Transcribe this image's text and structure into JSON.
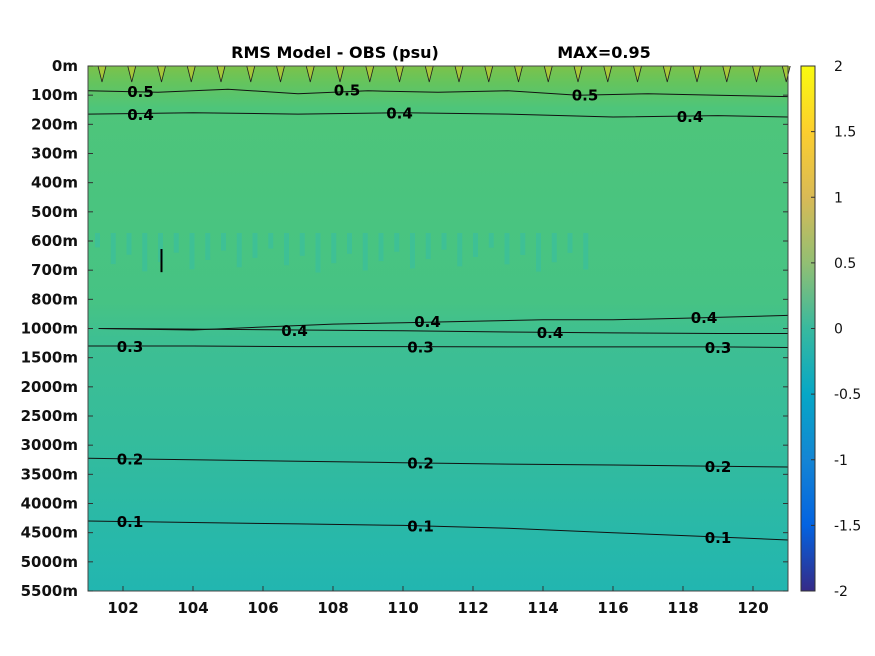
{
  "chart_data": {
    "type": "heatmap",
    "title": "RMS Model - OBS (psu)",
    "max_label": "MAX=0.95",
    "x_ticks": [
      "102",
      "104",
      "106",
      "108",
      "110",
      "112",
      "114",
      "116",
      "118",
      "120"
    ],
    "x_tick_values": [
      102,
      104,
      106,
      108,
      110,
      112,
      114,
      116,
      118,
      120
    ],
    "xlim": [
      101,
      121
    ],
    "y_ticks": [
      "0m",
      "100m",
      "200m",
      "300m",
      "400m",
      "500m",
      "600m",
      "700m",
      "800m",
      "1000m",
      "1500m",
      "2000m",
      "2500m",
      "3000m",
      "3500m",
      "4000m",
      "4500m",
      "5000m",
      "5500m"
    ],
    "colorbar": {
      "ticks": [
        "2",
        "1.5",
        "1",
        "0.5",
        "0",
        "-0.5",
        "-1",
        "-1.5",
        "-2"
      ],
      "tick_values": [
        2,
        1.5,
        1,
        0.5,
        0,
        -0.5,
        -1,
        -1.5,
        -2
      ],
      "range": [
        -2,
        2
      ],
      "colormap": "parula"
    },
    "bands": [
      {
        "depth_index": 0,
        "value": 0.65
      },
      {
        "depth_index": 1,
        "value": 0.48
      },
      {
        "depth_index": 2,
        "value": 0.42
      },
      {
        "depth_index": 5,
        "value": 0.4
      },
      {
        "depth_index": 9,
        "value": 0.38
      },
      {
        "depth_index": 10,
        "value": 0.3
      },
      {
        "depth_index": 13,
        "value": 0.2
      },
      {
        "depth_index": 15,
        "value": 0.1
      },
      {
        "depth_index": 18,
        "value": 0.05
      }
    ],
    "contours": [
      {
        "level": "0.5",
        "points": [
          [
            101,
            0.85
          ],
          [
            103,
            0.9
          ],
          [
            105,
            0.8
          ],
          [
            107,
            0.95
          ],
          [
            109,
            0.85
          ],
          [
            111,
            0.9
          ],
          [
            113,
            0.85
          ],
          [
            115,
            1.0
          ],
          [
            117,
            0.95
          ],
          [
            119,
            1.0
          ],
          [
            121,
            1.05
          ]
        ],
        "labels": [
          [
            102.5,
            0.85
          ],
          [
            108.4,
            0.8
          ],
          [
            115.2,
            0.97
          ]
        ]
      },
      {
        "level": "0.4",
        "points": [
          [
            101,
            1.65
          ],
          [
            104,
            1.6
          ],
          [
            107,
            1.65
          ],
          [
            110,
            1.6
          ],
          [
            113,
            1.65
          ],
          [
            116,
            1.75
          ],
          [
            119,
            1.7
          ],
          [
            121,
            1.75
          ]
        ],
        "labels": [
          [
            102.5,
            1.65
          ],
          [
            109.9,
            1.6
          ],
          [
            118.2,
            1.72
          ]
        ]
      },
      {
        "level": "0.4",
        "points": [
          [
            101.3,
            9.0
          ],
          [
            104,
            9.05
          ],
          [
            106,
            8.95
          ],
          [
            108,
            8.85
          ],
          [
            110,
            8.8
          ],
          [
            112,
            8.75
          ],
          [
            114,
            8.7
          ],
          [
            116,
            8.7
          ],
          [
            118,
            8.65
          ],
          [
            121,
            8.55
          ]
        ],
        "labels": [
          [
            106.9,
            9.05
          ],
          [
            110.7,
            8.75
          ],
          [
            118.6,
            8.6
          ]
        ]
      },
      {
        "level": "0.4",
        "points": [
          [
            101.3,
            9.0
          ],
          [
            104,
            9.02
          ],
          [
            107,
            9.05
          ],
          [
            110,
            9.08
          ],
          [
            113,
            9.12
          ],
          [
            116,
            9.15
          ],
          [
            119,
            9.17
          ],
          [
            121,
            9.17
          ]
        ],
        "labels": [
          [
            114.2,
            9.12
          ]
        ]
      },
      {
        "level": "0.3",
        "points": [
          [
            101,
            9.6
          ],
          [
            104,
            9.6
          ],
          [
            107,
            9.62
          ],
          [
            110,
            9.62
          ],
          [
            113,
            9.63
          ],
          [
            116,
            9.63
          ],
          [
            119,
            9.63
          ],
          [
            121,
            9.65
          ]
        ],
        "labels": [
          [
            102.2,
            9.6
          ],
          [
            110.5,
            9.62
          ],
          [
            119.0,
            9.63
          ]
        ]
      },
      {
        "level": "0.2",
        "points": [
          [
            101,
            13.45
          ],
          [
            104,
            13.5
          ],
          [
            107,
            13.55
          ],
          [
            110,
            13.6
          ],
          [
            113,
            13.65
          ],
          [
            116,
            13.68
          ],
          [
            119,
            13.72
          ],
          [
            121,
            13.75
          ]
        ],
        "labels": [
          [
            102.2,
            13.45
          ],
          [
            110.5,
            13.6
          ],
          [
            119.0,
            13.72
          ]
        ]
      },
      {
        "level": "0.1",
        "points": [
          [
            101,
            15.6
          ],
          [
            104,
            15.65
          ],
          [
            107,
            15.7
          ],
          [
            110,
            15.75
          ],
          [
            113,
            15.85
          ],
          [
            116,
            16.0
          ],
          [
            119,
            16.15
          ],
          [
            121,
            16.25
          ]
        ],
        "labels": [
          [
            102.2,
            15.6
          ],
          [
            110.5,
            15.75
          ],
          [
            119.0,
            16.15
          ]
        ]
      }
    ]
  }
}
